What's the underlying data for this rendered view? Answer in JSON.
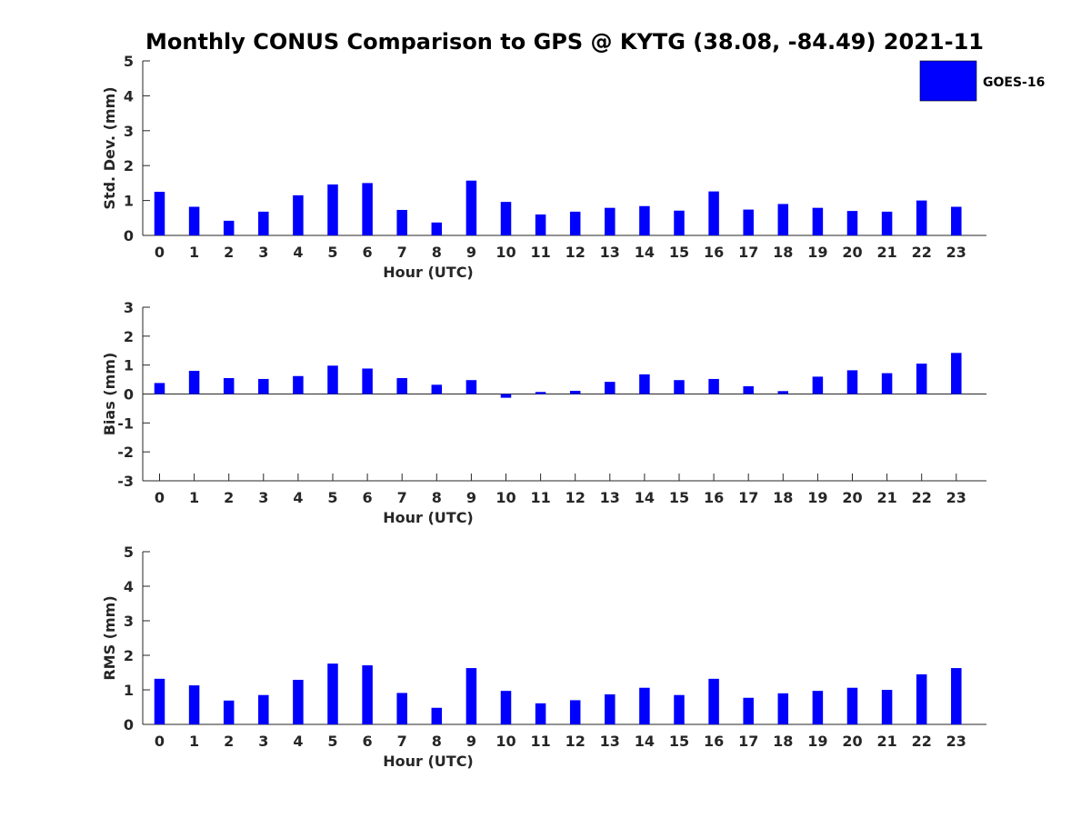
{
  "title": "Monthly CONUS Comparison to GPS @ KYTG (38.08, -84.49) 2021-11",
  "legend": {
    "label": "GOES-16",
    "position": "top-right"
  },
  "bar_color": "#0000ff",
  "chart_data": [
    {
      "type": "bar",
      "series": [
        {
          "name": "GOES-16",
          "values": [
            1.25,
            0.82,
            0.42,
            0.68,
            1.15,
            1.46,
            1.5,
            0.73,
            0.37,
            1.57,
            0.96,
            0.6,
            0.68,
            0.79,
            0.84,
            0.71,
            1.26,
            0.74,
            0.9,
            0.79,
            0.7,
            0.68,
            1.0,
            0.82
          ]
        }
      ],
      "categories": [
        "0",
        "1",
        "2",
        "3",
        "4",
        "5",
        "6",
        "7",
        "8",
        "9",
        "10",
        "11",
        "12",
        "13",
        "14",
        "15",
        "16",
        "17",
        "18",
        "19",
        "20",
        "21",
        "22",
        "23"
      ],
      "xlabel": "Hour (UTC)",
      "ylabel": "Std. Dev. (mm)",
      "ylim": [
        0,
        5
      ],
      "yticks": [
        "0",
        "1",
        "2",
        "3",
        "4",
        "5"
      ]
    },
    {
      "type": "bar",
      "series": [
        {
          "name": "GOES-16",
          "values": [
            0.38,
            0.8,
            0.55,
            0.52,
            0.62,
            0.98,
            0.88,
            0.55,
            0.32,
            0.48,
            -0.13,
            0.07,
            0.11,
            0.42,
            0.68,
            0.48,
            0.52,
            0.27,
            0.1,
            0.6,
            0.82,
            0.72,
            1.05,
            1.42
          ]
        }
      ],
      "categories": [
        "0",
        "1",
        "2",
        "3",
        "4",
        "5",
        "6",
        "7",
        "8",
        "9",
        "10",
        "11",
        "12",
        "13",
        "14",
        "15",
        "16",
        "17",
        "18",
        "19",
        "20",
        "21",
        "22",
        "23"
      ],
      "xlabel": "Hour (UTC)",
      "ylabel": "Bias (mm)",
      "ylim": [
        -3,
        3
      ],
      "yticks": [
        "-3",
        "-2",
        "-1",
        "0",
        "1",
        "2",
        "3"
      ]
    },
    {
      "type": "bar",
      "series": [
        {
          "name": "GOES-16",
          "values": [
            1.32,
            1.13,
            0.69,
            0.85,
            1.29,
            1.76,
            1.71,
            0.91,
            0.48,
            1.63,
            0.97,
            0.61,
            0.7,
            0.87,
            1.06,
            0.85,
            1.32,
            0.77,
            0.9,
            0.97,
            1.06,
            1.0,
            1.45,
            1.63
          ]
        }
      ],
      "categories": [
        "0",
        "1",
        "2",
        "3",
        "4",
        "5",
        "6",
        "7",
        "8",
        "9",
        "10",
        "11",
        "12",
        "13",
        "14",
        "15",
        "16",
        "17",
        "18",
        "19",
        "20",
        "21",
        "22",
        "23"
      ],
      "xlabel": "Hour (UTC)",
      "ylabel": "RMS (mm)",
      "ylim": [
        0,
        5
      ],
      "yticks": [
        "0",
        "1",
        "2",
        "3",
        "4",
        "5"
      ]
    }
  ]
}
